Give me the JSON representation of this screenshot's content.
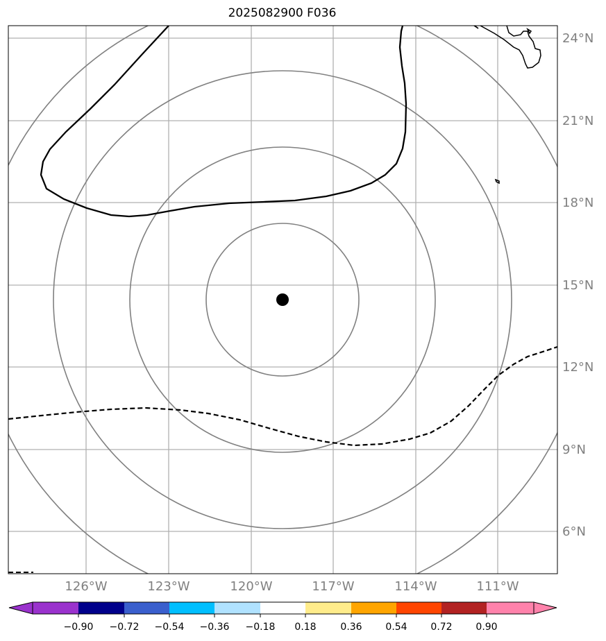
{
  "title": "2025082900 F036",
  "map": {
    "lat_labels": [
      "24°N",
      "21°N",
      "18°N",
      "15°N",
      "12°N",
      "9°N",
      "6°N"
    ],
    "lon_labels": [
      "126°W",
      "123°W",
      "120°W",
      "117°W",
      "114°W",
      "111°W"
    ],
    "center_marker": "storm-center",
    "range_rings": 4,
    "contours": [
      "solid-contour",
      "dashed-contour"
    ],
    "colors": {
      "rings": "#808080",
      "grid": "#b0b0b0",
      "contour": "#000000",
      "coast": "#000000"
    }
  },
  "colorbar": {
    "tick_labels": [
      "−0.90",
      "−0.72",
      "−0.54",
      "−0.36",
      "−0.18",
      "0.18",
      "0.36",
      "0.54",
      "0.72",
      "0.90"
    ],
    "colors": [
      "#9a32cd",
      "#00008b",
      "#3a5fcd",
      "#00bfff",
      "#b0e2ff",
      "#ffffff",
      "#ffec8b",
      "#ffa500",
      "#ff4500",
      "#b22222",
      "#ff82ab"
    ]
  }
}
